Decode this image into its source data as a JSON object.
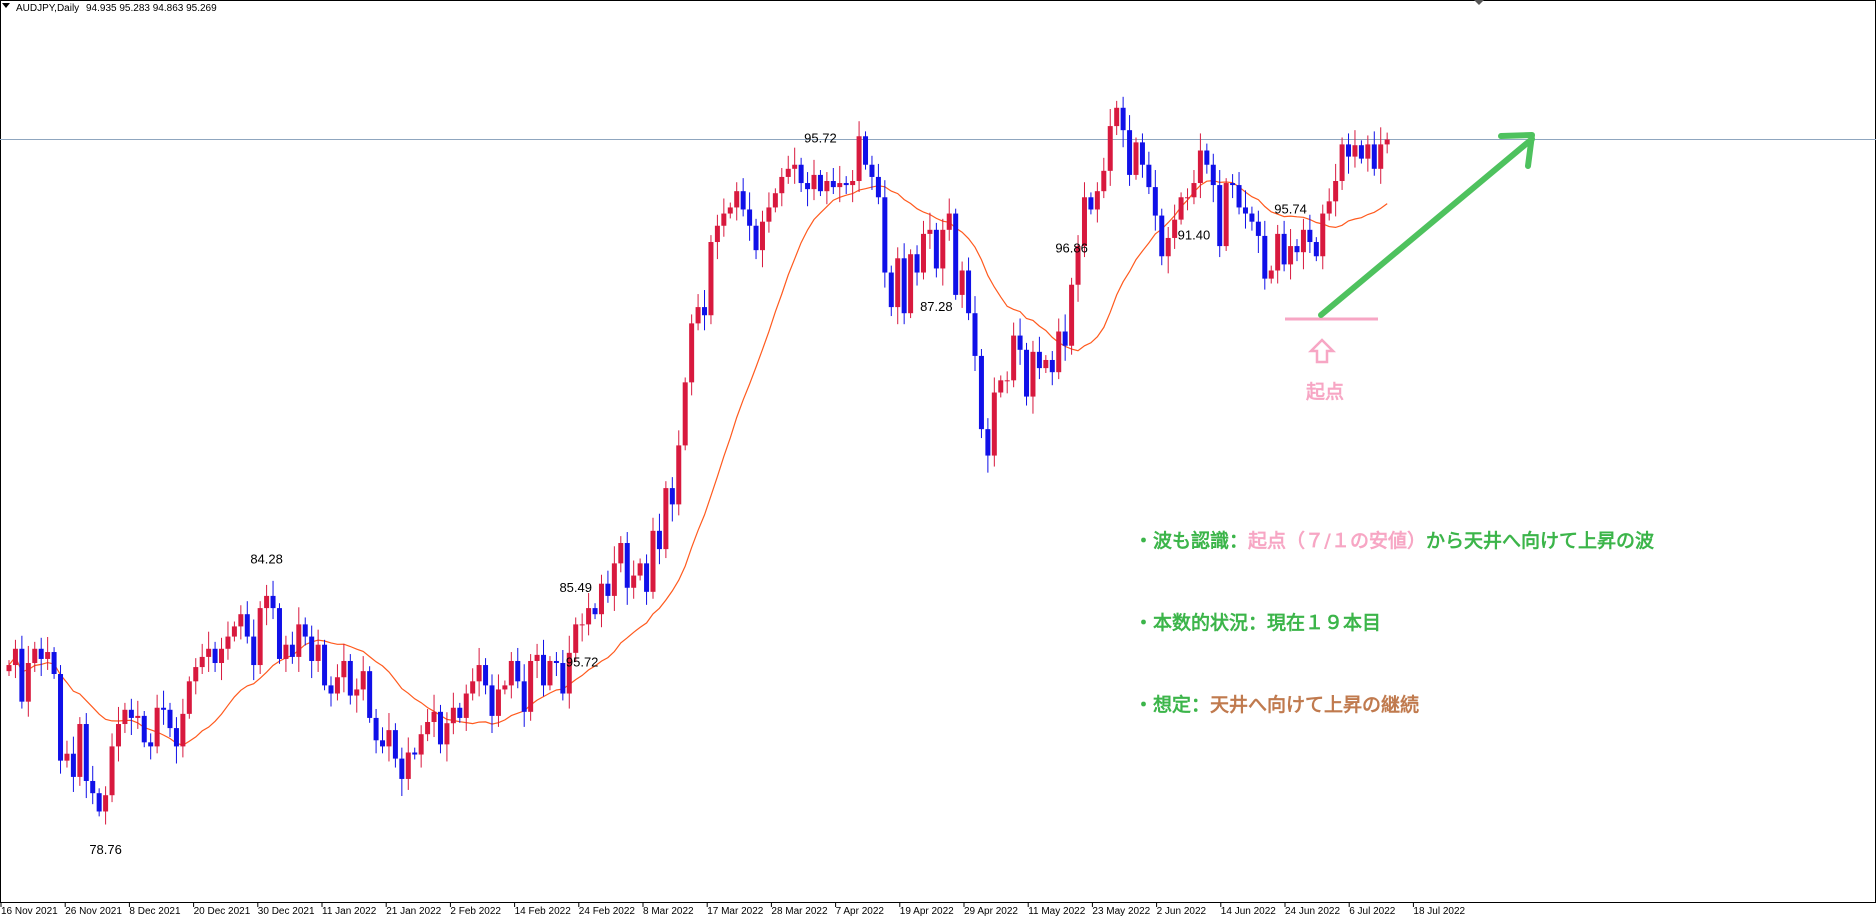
{
  "header": {
    "symbol": "AUDJPY,Daily",
    "ohlc": "94.935 95.283 94.863 95.269"
  },
  "colors": {
    "bull": "#d8193e",
    "bear": "#1010e8",
    "ma": "#ff5a1e",
    "hline": "#8fa6bf",
    "trend": "#4ec25e",
    "pink": "#f7a6c4",
    "green": "#3cb54a",
    "brown": "#c07a4e"
  },
  "chart_data": {
    "type": "candlestick",
    "symbol": "AUDJPY",
    "timeframe": "Daily",
    "x_ticks": [
      "16 Nov 2021",
      "26 Nov 2021",
      "8 Dec 2021",
      "20 Dec 2021",
      "30 Dec 2021",
      "11 Jan 2022",
      "21 Jan 2022",
      "2 Feb 2022",
      "14 Feb 2022",
      "24 Feb 2022",
      "8 Mar 2022",
      "17 Mar 2022",
      "28 Mar 2022",
      "7 Apr 2022",
      "19 Apr 2022",
      "29 Apr 2022",
      "11 May 2022",
      "23 May 2022",
      "2 Jun 2022",
      "14 Jun 2022",
      "24 Jun 2022",
      "6 Jul 2022",
      "18 Jul 2022"
    ],
    "price_labels": [
      {
        "text": "78.76",
        "bar": 15,
        "pos": "below"
      },
      {
        "text": "84.28",
        "bar": 40,
        "pos": "above"
      },
      {
        "text": "85.49",
        "bar": 88,
        "pos": "above"
      },
      {
        "text": "95.72",
        "bar": 89,
        "pos": "below"
      },
      {
        "text": "95.72",
        "bar": 126,
        "pos": "above"
      },
      {
        "text": "87.28",
        "bar": 144,
        "pos": "below"
      },
      {
        "text": "96.86",
        "bar": 165,
        "pos": "above"
      },
      {
        "text": "91.40",
        "bar": 184,
        "pos": "below"
      },
      {
        "text": "95.74",
        "bar": 199,
        "pos": "above"
      }
    ],
    "horizontal_line": 95.27,
    "y_range": [
      76.5,
      98.7
    ],
    "ma_period": 20,
    "closes": [
      82.35,
      82.75,
      81.45,
      82.4,
      82.75,
      82.5,
      82.67,
      82.13,
      80.0,
      80.17,
      79.6,
      80.9,
      79.5,
      79.2,
      78.75,
      79.15,
      80.35,
      80.9,
      81.25,
      81.05,
      81.1,
      80.45,
      80.35,
      81.3,
      81.25,
      80.8,
      80.35,
      81.15,
      81.95,
      82.3,
      82.55,
      82.75,
      82.4,
      82.75,
      83.05,
      83.3,
      83.6,
      83.05,
      82.35,
      83.75,
      84.05,
      83.75,
      82.5,
      82.85,
      82.55,
      83.35,
      83.05,
      82.45,
      82.85,
      81.85,
      81.65,
      82.05,
      82.45,
      81.6,
      81.75,
      82.2,
      81.05,
      80.5,
      80.35,
      80.75,
      80.05,
      79.55,
      80.2,
      80.15,
      80.65,
      80.95,
      81.2,
      80.4,
      80.92,
      81.3,
      81.05,
      81.65,
      81.95,
      82.35,
      81.85,
      81.1,
      81.75,
      81.85,
      82.45,
      81.95,
      81.2,
      82.45,
      82.6,
      81.85,
      82.45,
      82.4,
      81.65,
      82.65,
      83.35,
      83.35,
      83.75,
      83.6,
      84.35,
      84.05,
      84.85,
      85.35,
      84.25,
      84.55,
      84.85,
      84.15,
      85.65,
      85.2,
      86.7,
      86.3,
      87.75,
      89.3,
      90.75,
      91.15,
      90.95,
      92.75,
      93.15,
      93.45,
      93.6,
      94.0,
      93.55,
      93.15,
      92.55,
      93.25,
      93.6,
      93.95,
      94.35,
      94.55,
      94.65,
      94.2,
      94.05,
      94.4,
      94.0,
      94.25,
      94.1,
      94.2,
      94.15,
      94.25,
      95.35,
      94.65,
      94.35,
      93.85,
      92.0,
      91.15,
      92.35,
      91.0,
      92.45,
      92.0,
      92.95,
      93.05,
      92.1,
      93.05,
      93.45,
      91.45,
      92.05,
      91.0,
      89.95,
      88.15,
      87.5,
      89.05,
      89.35,
      89.35,
      90.45,
      90.1,
      88.95,
      90.05,
      89.65,
      89.85,
      89.55,
      90.55,
      90.2,
      91.7,
      92.65,
      93.85,
      93.55,
      94.0,
      94.5,
      95.6,
      96.05,
      95.5,
      94.4,
      95.2,
      94.65,
      94.1,
      93.4,
      92.4,
      92.85,
      93.3,
      93.85,
      93.85,
      94.2,
      95.0,
      94.65,
      94.15,
      92.65,
      94.2,
      94.15,
      93.6,
      93.45,
      93.25,
      92.9,
      91.85,
      92.05,
      92.95,
      92.2,
      92.65,
      92.5,
      93.05,
      92.75,
      92.4,
      93.45,
      93.75,
      94.25,
      95.15,
      94.85,
      95.13,
      94.8,
      95.15,
      94.55,
      95.15,
      95.27
    ]
  },
  "annotations": {
    "start_label": "起点",
    "line1": {
      "bullet": "・波も認識：",
      "pink": "起点（７/１の安値）",
      "rest": "から天井へ向けて上昇の波"
    },
    "line2": {
      "bullet": "・本数的状況：",
      "rest": "現在１９本目"
    },
    "line3": {
      "bullet": "・想定：",
      "rest": "天井へ向けて上昇の継続"
    }
  }
}
